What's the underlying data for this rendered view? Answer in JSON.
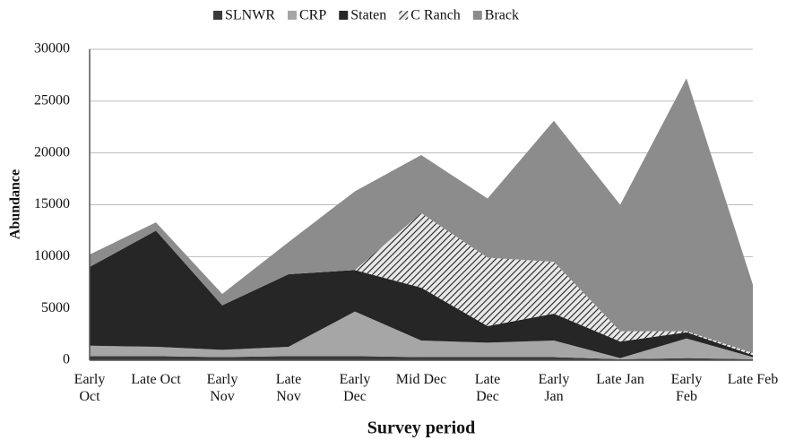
{
  "chart_data": {
    "type": "stacked_area",
    "legend": "top",
    "x_label": "Survey period",
    "y_label": "Abundance",
    "categories": [
      "Early\nOct",
      "Late Oct",
      "Early\nNov",
      "Late\nNov",
      "Early\nDec",
      "Mid Dec",
      "Late\nDec",
      "Early\nJan",
      "Late Jan",
      "Early\nFeb",
      "Late Feb"
    ],
    "ylim": [
      0,
      30000
    ],
    "yticks": [
      0,
      5000,
      10000,
      15000,
      20000,
      25000,
      30000
    ],
    "grid": true,
    "series": [
      {
        "name": "SLNWR",
        "color": "#3a3a3a",
        "values": [
          400,
          400,
          300,
          400,
          400,
          300,
          300,
          300,
          100,
          200,
          100
        ]
      },
      {
        "name": "CRP",
        "color": "#a6a6a6",
        "values": [
          1000,
          900,
          700,
          900,
          4300,
          1600,
          1400,
          1600,
          100,
          1900,
          200
        ]
      },
      {
        "name": "Staten",
        "color": "#262626",
        "values": [
          7600,
          11200,
          4300,
          7000,
          4000,
          5100,
          1600,
          2600,
          1600,
          600,
          200
        ]
      },
      {
        "name": "C Ranch",
        "color": "hatch",
        "values": [
          0,
          0,
          0,
          0,
          0,
          7200,
          6600,
          5000,
          1000,
          100,
          200
        ]
      },
      {
        "name": "Brack",
        "color": "#8c8c8c",
        "values": [
          1200,
          800,
          1100,
          3100,
          7600,
          5600,
          5700,
          13600,
          12200,
          24400,
          6600
        ]
      }
    ]
  }
}
